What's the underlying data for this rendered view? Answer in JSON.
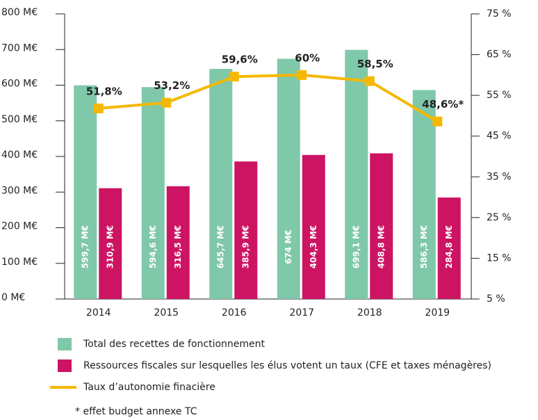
{
  "chart_data": {
    "type": "bar",
    "categories": [
      "2014",
      "2015",
      "2016",
      "2017",
      "2018",
      "2019"
    ],
    "series": [
      {
        "name": "Total des recettes de fonctionnement",
        "type": "bar",
        "color": "#7fc8a9",
        "values": [
          599.7,
          594.6,
          645.7,
          674,
          699.1,
          586.3
        ],
        "value_labels": [
          "599,7 M€",
          "594,6 M€",
          "645,7 M€",
          "674 M€",
          "699,1 M€",
          "586,3 M€"
        ]
      },
      {
        "name": "Ressources fiscales sur lesquelles les élus votent un taux (CFE et taxes ménagères)",
        "type": "bar",
        "color": "#cc1463",
        "values": [
          310.9,
          316.5,
          385.9,
          404.3,
          408.8,
          284.8
        ],
        "value_labels": [
          "310,9 M€",
          "316,5 M€",
          "385,9 M€",
          "404,3 M€",
          "408,8 M€",
          "284,8 M€"
        ]
      },
      {
        "name": "Taux d’autonomie finacière",
        "type": "line",
        "axis": "y2",
        "color": "#f5b800",
        "values": [
          51.8,
          53.2,
          59.6,
          60,
          58.5,
          48.6
        ],
        "value_labels": [
          "51,8%",
          "53,2%",
          "59,6%",
          "60%",
          "58,5%",
          "48,6%*"
        ]
      }
    ],
    "ylim": [
      0,
      800
    ],
    "yticks": [
      {
        "value": 0,
        "label": "0 M€"
      },
      {
        "value": 100,
        "label": "100 M€"
      },
      {
        "value": 200,
        "label": "200 M€"
      },
      {
        "value": 300,
        "label": "300 M€"
      },
      {
        "value": 400,
        "label": "400 M€"
      },
      {
        "value": 500,
        "label": "500 M€"
      },
      {
        "value": 600,
        "label": "600 M€"
      },
      {
        "value": 700,
        "label": "700 M€"
      },
      {
        "value": 800,
        "label": "800 M€"
      }
    ],
    "y2lim": [
      5,
      75
    ],
    "y2ticks": [
      {
        "value": 5,
        "label": "5 %"
      },
      {
        "value": 15,
        "label": "15 %"
      },
      {
        "value": 25,
        "label": "25 %"
      },
      {
        "value": 35,
        "label": "35 %"
      },
      {
        "value": 45,
        "label": "45 %"
      },
      {
        "value": 55,
        "label": "55 %"
      },
      {
        "value": 65,
        "label": "65 %"
      },
      {
        "value": 75,
        "label": "75 %"
      }
    ],
    "note": "* effet budget annexe TC"
  }
}
